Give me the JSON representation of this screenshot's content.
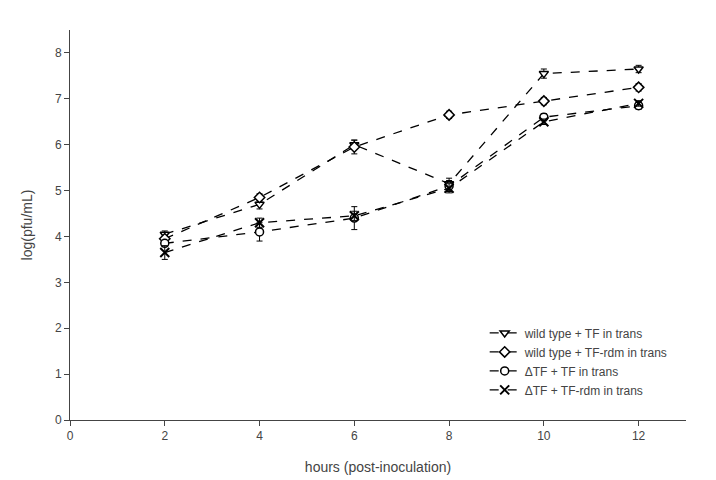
{
  "chart_data": {
    "type": "line",
    "x_label": "hours (post-inoculation)",
    "y_label": "log(pfu/mL)",
    "x": [
      2,
      4,
      6,
      8,
      10,
      12
    ],
    "series": [
      {
        "name": "wild type + TF in trans",
        "color": "#000000",
        "marker": "triangle-down",
        "line_style": "dashed",
        "values": [
          4.05,
          4.7,
          6.0,
          5.15,
          7.55,
          7.65
        ],
        "yerr": [
          0.07,
          0.1,
          0.1,
          0.12,
          0.1,
          0.08
        ]
      },
      {
        "name": "wild type + TF-rdm in trans",
        "color": "#000000",
        "marker": "diamond",
        "line_style": "dashed",
        "values": [
          3.95,
          4.85,
          5.95,
          6.65,
          6.95,
          7.25
        ],
        "yerr": [
          0.06,
          0.08,
          0.15,
          0.08,
          0.08,
          0.08
        ]
      },
      {
        "name": "ΔTF + TF in trans",
        "color": "#000000",
        "marker": "circle",
        "line_style": "dashed",
        "values": [
          3.85,
          4.1,
          4.4,
          5.1,
          6.6,
          6.85
        ],
        "yerr": [
          0.06,
          0.2,
          0.25,
          0.12,
          0.08,
          0.08
        ]
      },
      {
        "name": "ΔTF + TF-rdm in trans",
        "color": "#000000",
        "marker": "x",
        "line_style": "dashed",
        "values": [
          3.65,
          4.3,
          4.45,
          5.05,
          6.5,
          6.9
        ],
        "yerr": [
          0.15,
          0.1,
          0.1,
          0.1,
          0.06,
          0.06
        ]
      }
    ],
    "xlim": [
      0,
      13
    ],
    "ylim": [
      0,
      8.5
    ],
    "xticks": [
      0,
      2,
      4,
      6,
      8,
      10,
      12
    ],
    "yticks": [
      0,
      1,
      2,
      3,
      4,
      5,
      6,
      7,
      8
    ],
    "grid": false,
    "legend": "lower right"
  }
}
